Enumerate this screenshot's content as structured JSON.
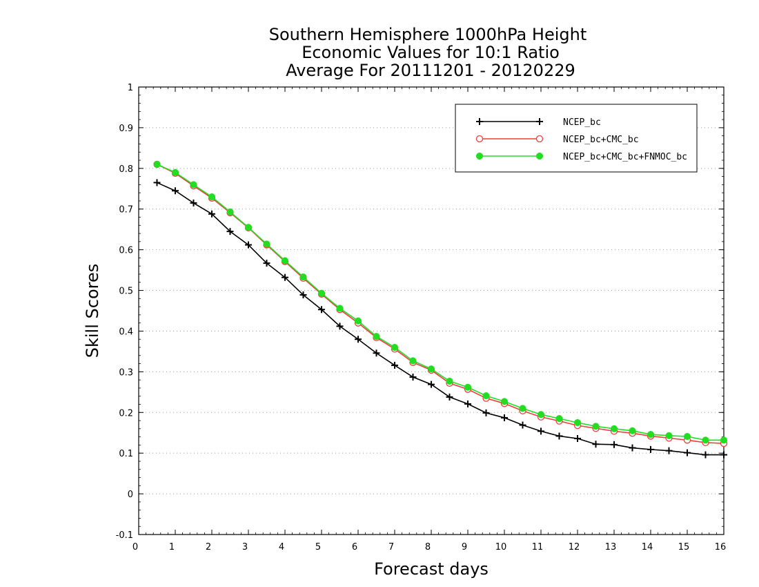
{
  "chart_data": {
    "type": "line",
    "title_lines": [
      "Southern Hemisphere 1000hPa Height",
      "Economic Values for 10:1 Ratio",
      "Average For 20111201 - 20120229"
    ],
    "xlabel": "Forecast days",
    "ylabel": "Skill Scores",
    "xlim": [
      0,
      16
    ],
    "ylim": [
      -0.1,
      1
    ],
    "xticks": [
      "0",
      "1",
      "2",
      "3",
      "4",
      "5",
      "6",
      "7",
      "8",
      "9",
      "10",
      "11",
      "12",
      "13",
      "14",
      "15",
      "16"
    ],
    "yticks": [
      "-0.1",
      "0",
      "0.1",
      "0.2",
      "0.3",
      "0.4",
      "0.5",
      "0.6",
      "0.7",
      "0.8",
      "0.9",
      "1"
    ],
    "ytick_values": [
      -0.1,
      0,
      0.1,
      0.2,
      0.3,
      0.4,
      0.5,
      0.6,
      0.7,
      0.8,
      0.9,
      1
    ],
    "grid": true,
    "legend_position": "top-right",
    "x": [
      0.5,
      1,
      1.5,
      2,
      2.5,
      3,
      3.5,
      4,
      4.5,
      5,
      5.5,
      6,
      6.5,
      7,
      7.5,
      8,
      8.5,
      9,
      9.5,
      10,
      10.5,
      11,
      11.5,
      12,
      12.5,
      13,
      13.5,
      14,
      14.5,
      15,
      15.5,
      16
    ],
    "series": [
      {
        "name": "NCEP_bc",
        "color": "#000000",
        "marker": "plus",
        "values": [
          0.765,
          0.745,
          0.715,
          0.688,
          0.645,
          0.612,
          0.567,
          0.532,
          0.489,
          0.453,
          0.412,
          0.38,
          0.346,
          0.316,
          0.287,
          0.269,
          0.238,
          0.221,
          0.199,
          0.187,
          0.169,
          0.154,
          0.142,
          0.136,
          0.122,
          0.121,
          0.113,
          0.109,
          0.106,
          0.101,
          0.096,
          0.096
        ]
      },
      {
        "name": "NCEP_bc+CMC_bc",
        "color": "#ee3b3b",
        "marker": "open-circle",
        "values": [
          0.81,
          0.788,
          0.757,
          0.727,
          0.691,
          0.654,
          0.612,
          0.571,
          0.53,
          0.491,
          0.453,
          0.42,
          0.384,
          0.356,
          0.323,
          0.304,
          0.272,
          0.257,
          0.235,
          0.222,
          0.204,
          0.189,
          0.179,
          0.168,
          0.161,
          0.154,
          0.149,
          0.142,
          0.137,
          0.132,
          0.126,
          0.124
        ]
      },
      {
        "name": "NCEP_bc+CMC_bc+FNMOC_bc",
        "color": "#22dd22",
        "marker": "filled-circle",
        "values": [
          0.81,
          0.79,
          0.76,
          0.73,
          0.693,
          0.655,
          0.614,
          0.573,
          0.533,
          0.493,
          0.456,
          0.425,
          0.387,
          0.36,
          0.327,
          0.307,
          0.277,
          0.262,
          0.241,
          0.227,
          0.21,
          0.195,
          0.185,
          0.175,
          0.166,
          0.16,
          0.155,
          0.146,
          0.143,
          0.141,
          0.132,
          0.132
        ]
      }
    ]
  }
}
